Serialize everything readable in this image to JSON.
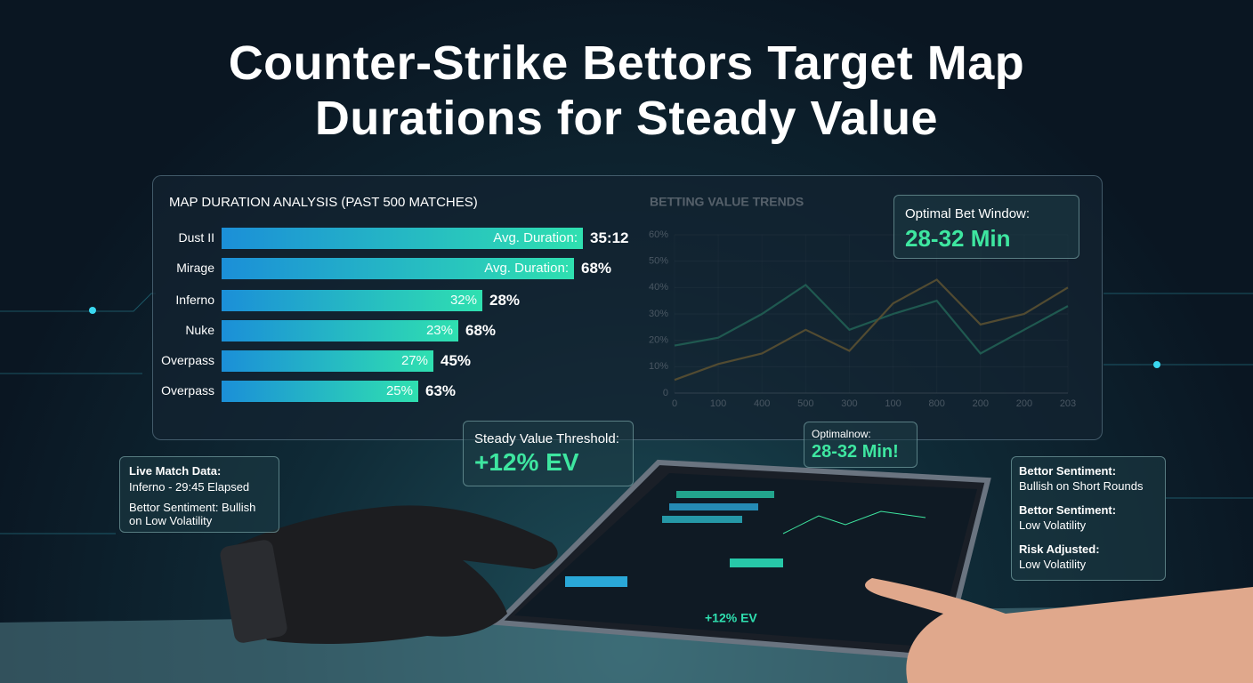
{
  "title": "Counter-Strike Bettors Target Map Durations for Steady Value",
  "duration_panel": {
    "heading": "MAP DURATION ANALYSIS (PAST 500 MATCHES)",
    "rows": [
      {
        "label": "Dust II",
        "inner": "Avg. Duration:",
        "value": "35:12"
      },
      {
        "label": "Mirage",
        "inner": "Avg. Duration:",
        "value": "68%"
      },
      {
        "label": "Inferno",
        "inner": "32%",
        "value": "28%"
      },
      {
        "label": "Nuke",
        "inner": "23%",
        "value": "68%"
      },
      {
        "label": "Overpass",
        "inner": "27%",
        "value": "45%"
      },
      {
        "label": "Overpass",
        "inner": "25%",
        "value": "63%"
      }
    ]
  },
  "chart_data": {
    "type": "line",
    "title": "BETTING VALUE TRENDS",
    "categories": [
      "0",
      "100",
      "400",
      "500",
      "300",
      "100",
      "800",
      "200",
      "200",
      "203"
    ],
    "ylim": [
      0,
      60
    ],
    "yticks": [
      0,
      {
        "value": 10,
        "label": "10%"
      },
      {
        "value": 20,
        "label": "20%"
      },
      {
        "value": 30,
        "label": "30%"
      },
      {
        "value": 40,
        "label": "40%"
      },
      {
        "value": 50,
        "label": "50%"
      },
      {
        "value": 60,
        "label": "60%"
      }
    ],
    "grid": true,
    "series": [
      {
        "color": "#3ee6a0",
        "values": [
          18,
          21,
          30,
          41,
          24,
          30,
          35,
          15,
          24,
          33
        ]
      },
      {
        "color": "#f2b233",
        "values": [
          5,
          11,
          15,
          24,
          16,
          34,
          43,
          26,
          30,
          40
        ]
      }
    ]
  },
  "optimal_window": {
    "label": "Optimal Bet Window:",
    "value": "28-32 Min"
  },
  "threshold": {
    "label": "Steady Value Threshold:",
    "value": "+12% EV"
  },
  "optimal_tag": {
    "label": "Optimalnow:",
    "value": "28-32 Min!"
  },
  "live_panel": {
    "title": "Live Match Data:",
    "detail": "Inferno - 29:45 Elapsed",
    "sentiment": "Bettor Sentiment: Bullish on Low Volatility"
  },
  "sentiment_panel": [
    {
      "title": "Bettor Sentiment:",
      "detail": "Bullish on Short Rounds"
    },
    {
      "title": "Bettor Sentiment:",
      "detail": "Low Volatility"
    },
    {
      "title": "Risk Adjusted:",
      "detail": "Low Volatility"
    }
  ],
  "tablet": {
    "ev": "+12% EV"
  }
}
